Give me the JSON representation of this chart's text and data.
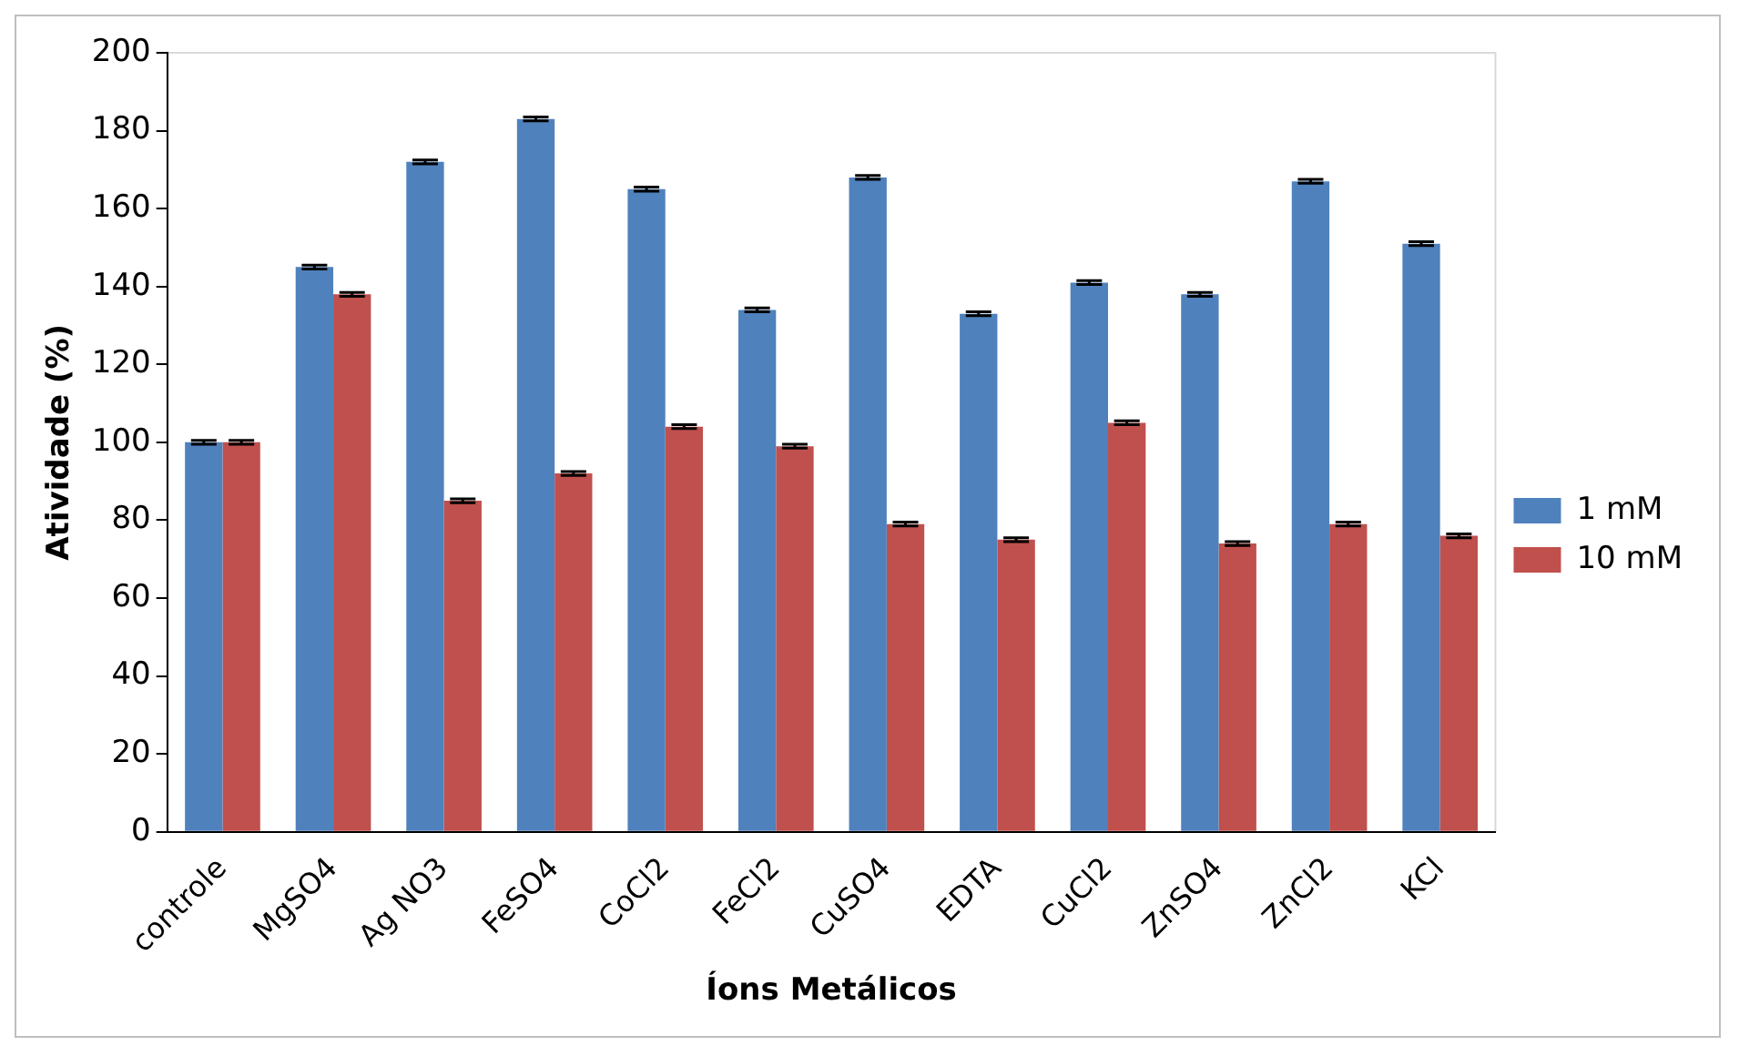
{
  "chart_data": {
    "type": "bar",
    "xlabel": "Íons Metálicos",
    "ylabel": "Atividade (%)",
    "categories": [
      "controle",
      "MgSO4",
      "Ag NO3",
      "FeSO4",
      "CoCl2",
      "FeCl2",
      "CuSO4",
      "EDTA",
      "CuCl2",
      "ZnSO4",
      "ZnCl2",
      "KCl"
    ],
    "series": [
      {
        "name": "1 mM",
        "color": "#4f81bd",
        "values": [
          100,
          145,
          172,
          183,
          165,
          134,
          168,
          133,
          141,
          138,
          167,
          151
        ],
        "errors": [
          0.5,
          0.5,
          0.5,
          0.5,
          0.5,
          0.5,
          0.5,
          0.5,
          0.5,
          0.5,
          0.5,
          0.5
        ]
      },
      {
        "name": "10 mM",
        "color": "#c0504d",
        "values": [
          100,
          138,
          85,
          92,
          104,
          99,
          79,
          75,
          105,
          74,
          79,
          76
        ],
        "errors": [
          0.5,
          0.5,
          0.5,
          0.5,
          0.5,
          0.5,
          0.5,
          0.5,
          0.5,
          0.5,
          0.5,
          0.5
        ]
      }
    ],
    "ylim": [
      0,
      200
    ],
    "yticks": [
      0,
      20,
      40,
      60,
      80,
      100,
      120,
      140,
      160,
      180,
      200
    ],
    "grid": false,
    "legend": "right"
  }
}
